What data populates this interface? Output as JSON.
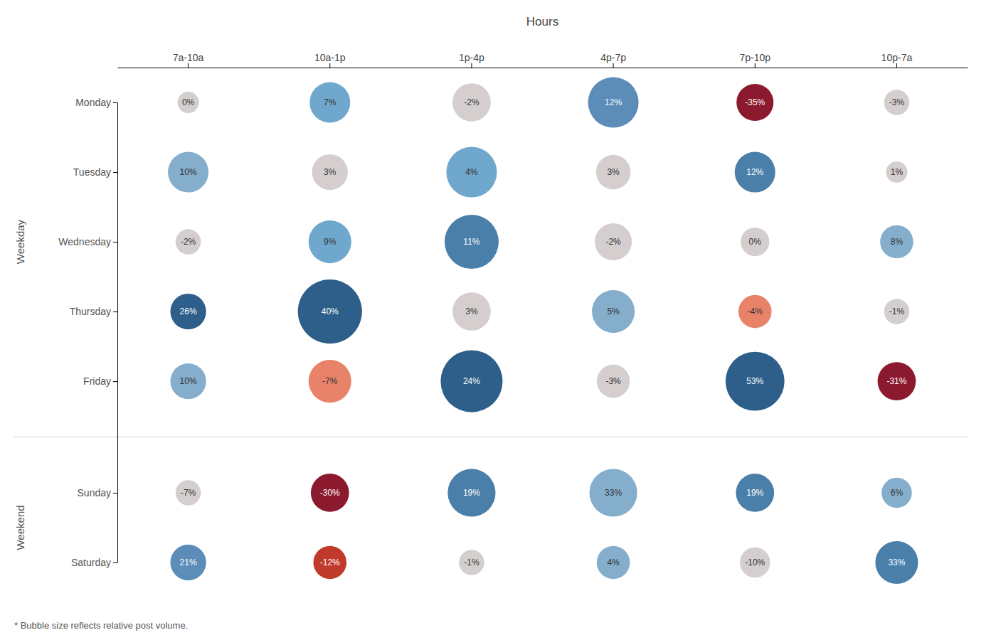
{
  "chart_data": {
    "type": "bubble",
    "title": "Hours",
    "categories": [
      "7a-10a",
      "10a-1p",
      "1p-4p",
      "4p-7p",
      "7p-10p",
      "10p-7a"
    ],
    "data_labels": true,
    "annotations": [
      "* Bubble size reflects relative post volume."
    ],
    "series": [
      {
        "name": "Monday",
        "group": "Weekday",
        "values": [
          0,
          7,
          -2,
          12,
          -35,
          -3
        ],
        "value_labels": [
          "0%",
          "7%",
          "-2%",
          "12%",
          "-35%",
          "-3%"
        ],
        "sizes": [
          500,
          1800,
          1600,
          2800,
          1500,
          700
        ],
        "colors": [
          "#d4cece",
          "#6fa8cc",
          "#d4cece",
          "#5b8db8",
          "#8b1a2e",
          "#d4cece"
        ]
      },
      {
        "name": "Tuesday",
        "group": "Weekday",
        "values": [
          10,
          3,
          4,
          3,
          12,
          1
        ],
        "value_labels": [
          "10%",
          "3%",
          "4%",
          "3%",
          "12%",
          "1%"
        ],
        "sizes": [
          1800,
          1400,
          2800,
          1300,
          1800,
          500
        ],
        "colors": [
          "#85aecc",
          "#d4cece",
          "#6fa8cc",
          "#d4cece",
          "#4a7faa",
          "#d4cece"
        ]
      },
      {
        "name": "Wednesday",
        "group": "Weekday",
        "values": [
          -2,
          9,
          11,
          -2,
          0,
          8
        ],
        "value_labels": [
          "-2%",
          "9%",
          "11%",
          "-2%",
          "0%",
          "8%"
        ],
        "sizes": [
          700,
          2000,
          3200,
          1500,
          900,
          1200
        ],
        "colors": [
          "#d4cece",
          "#6fa8cc",
          "#4a7faa",
          "#d4cece",
          "#d4cece",
          "#85aecc"
        ]
      },
      {
        "name": "Thursday",
        "group": "Weekday",
        "values": [
          26,
          40,
          3,
          5,
          -4,
          -1
        ],
        "value_labels": [
          "26%",
          "40%",
          "3%",
          "5%",
          "-4%",
          "-1%"
        ],
        "sizes": [
          1400,
          4500,
          1600,
          2000,
          1200,
          700
        ],
        "colors": [
          "#2e5f8a",
          "#2e5f8a",
          "#d4cece",
          "#85aecc",
          "#e8836a",
          "#d4cece"
        ]
      },
      {
        "name": "Friday",
        "group": "Weekday",
        "values": [
          10,
          -7,
          24,
          -3,
          53,
          -31
        ],
        "value_labels": [
          "10%",
          "-7%",
          "24%",
          "-3%",
          "53%",
          "-31%"
        ],
        "sizes": [
          1400,
          2000,
          4200,
          1200,
          3800,
          1600
        ],
        "colors": [
          "#85aecc",
          "#e8836a",
          "#2e5f8a",
          "#d4cece",
          "#2e5f8a",
          "#8b1a2e"
        ]
      },
      {
        "name": "Sunday",
        "group": "Weekend",
        "values": [
          -7,
          -30,
          19,
          33,
          19,
          6
        ],
        "value_labels": [
          "-7%",
          "-30%",
          "19%",
          "33%",
          "19%",
          "6%"
        ],
        "sizes": [
          700,
          1600,
          2500,
          2500,
          1600,
          1000
        ],
        "colors": [
          "#d4cece",
          "#8b1a2e",
          "#4a7faa",
          "#85aecc",
          "#4a7faa",
          "#85aecc"
        ]
      },
      {
        "name": "Saturday",
        "group": "Weekend",
        "values": [
          21,
          -12,
          -1,
          4,
          -10,
          33
        ],
        "value_labels": [
          "21%",
          "-12%",
          "-1%",
          "4%",
          "-10%",
          "33%"
        ],
        "sizes": [
          1400,
          1200,
          700,
          1200,
          1000,
          2000
        ],
        "colors": [
          "#5b8db8",
          "#c0392b",
          "#d4cece",
          "#85aecc",
          "#d4cece",
          "#4a7faa"
        ]
      }
    ]
  }
}
